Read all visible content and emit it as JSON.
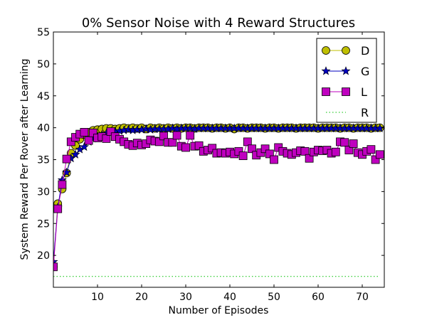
{
  "chart_data": {
    "type": "line",
    "title": "0% Sensor Noise with 4 Reward Structures",
    "xlabel": "Number of Episodes",
    "ylabel": "System Reward Per Rover after Learning",
    "xlim": [
      0,
      75
    ],
    "ylim": [
      15,
      55
    ],
    "xticks": [
      10,
      20,
      30,
      40,
      50,
      60,
      70
    ],
    "yticks": [
      20,
      25,
      30,
      35,
      40,
      45,
      50,
      55
    ],
    "grid": false,
    "legend_position": "top-right",
    "series": [
      {
        "name": "D",
        "marker": "circle",
        "color": "#bfbf00",
        "x": [
          0,
          1,
          2,
          3,
          4,
          5,
          6,
          7,
          8,
          9,
          10,
          11,
          12,
          13,
          14,
          15,
          16,
          17,
          18,
          19,
          20,
          21,
          22,
          23,
          24,
          25,
          26,
          27,
          28,
          29,
          30,
          31,
          32,
          33,
          34,
          35,
          36,
          37,
          38,
          39,
          40,
          41,
          42,
          43,
          44,
          45,
          46,
          47,
          48,
          49,
          50,
          51,
          52,
          53,
          54,
          55,
          56,
          57,
          58,
          59,
          60,
          61,
          62,
          63,
          64,
          65,
          66,
          67,
          68,
          69,
          70,
          71,
          72,
          73,
          74
        ],
        "values": [
          18.2,
          28.1,
          30.4,
          32.9,
          36.0,
          37.2,
          38.2,
          38.9,
          39.3,
          39.6,
          39.7,
          39.8,
          39.9,
          39.9,
          39.8,
          39.9,
          40.0,
          39.9,
          40.0,
          39.9,
          40.0,
          39.8,
          40.0,
          39.9,
          40.0,
          39.9,
          40.0,
          39.9,
          40.0,
          39.9,
          40.0,
          40.0,
          39.9,
          40.0,
          40.0,
          40.0,
          39.9,
          40.0,
          40.0,
          39.9,
          40.0,
          39.8,
          40.0,
          40.0,
          39.9,
          40.0,
          40.0,
          40.0,
          39.9,
          40.0,
          40.0,
          39.9,
          40.0,
          40.0,
          40.0,
          39.9,
          40.0,
          40.0,
          40.0,
          40.0,
          39.9,
          40.0,
          40.0,
          40.0,
          40.0,
          39.9,
          40.0,
          40.0,
          39.9,
          40.0,
          40.0,
          40.0,
          39.9,
          40.0,
          40.0
        ]
      },
      {
        "name": "G",
        "marker": "star",
        "color": "#0000bf",
        "x": [
          0,
          1,
          2,
          3,
          4,
          5,
          6,
          7,
          8,
          9,
          10,
          11,
          12,
          13,
          14,
          15,
          16,
          17,
          18,
          19,
          20,
          21,
          22,
          23,
          24,
          25,
          26,
          27,
          28,
          29,
          30,
          31,
          32,
          33,
          34,
          35,
          36,
          37,
          38,
          39,
          40,
          41,
          42,
          43,
          44,
          45,
          46,
          47,
          48,
          49,
          50,
          51,
          52,
          53,
          54,
          55,
          56,
          57,
          58,
          59,
          60,
          61,
          62,
          63,
          64,
          65,
          66,
          67,
          68,
          69,
          70,
          71,
          72,
          73,
          74
        ],
        "values": [
          19.0,
          27.5,
          31.8,
          33.0,
          35.2,
          35.8,
          36.6,
          37.0,
          37.8,
          38.3,
          38.6,
          38.9,
          39.1,
          39.3,
          39.4,
          39.5,
          39.6,
          39.7,
          39.6,
          39.7,
          39.7,
          39.8,
          39.7,
          39.8,
          39.8,
          39.8,
          39.8,
          39.9,
          39.8,
          39.9,
          39.9,
          39.9,
          39.8,
          39.9,
          39.9,
          39.9,
          39.9,
          39.9,
          39.9,
          39.9,
          39.9,
          39.9,
          39.9,
          39.9,
          39.9,
          39.9,
          39.9,
          39.9,
          39.9,
          39.9,
          39.9,
          39.9,
          39.9,
          39.9,
          39.9,
          39.9,
          39.9,
          39.9,
          39.9,
          39.9,
          39.9,
          39.9,
          39.9,
          39.9,
          39.9,
          39.9,
          39.9,
          39.9,
          39.9,
          39.9,
          39.9,
          39.9,
          39.9,
          39.9,
          39.9
        ]
      },
      {
        "name": "L",
        "marker": "square",
        "color": "#bf00bf",
        "x": [
          0,
          1,
          2,
          3,
          4,
          5,
          6,
          7,
          8,
          9,
          10,
          11,
          12,
          13,
          14,
          15,
          16,
          17,
          18,
          19,
          20,
          21,
          22,
          23,
          24,
          25,
          26,
          27,
          28,
          29,
          30,
          31,
          32,
          33,
          34,
          35,
          36,
          37,
          38,
          39,
          40,
          41,
          42,
          43,
          44,
          45,
          46,
          47,
          48,
          49,
          50,
          51,
          52,
          53,
          54,
          55,
          56,
          57,
          58,
          59,
          60,
          61,
          62,
          63,
          64,
          65,
          66,
          67,
          68,
          69,
          70,
          71,
          72,
          73,
          74
        ],
        "values": [
          18.2,
          27.3,
          31.1,
          35.1,
          37.8,
          38.5,
          39.0,
          39.3,
          38.0,
          39.2,
          38.4,
          38.6,
          38.3,
          39.4,
          38.6,
          38.2,
          37.8,
          37.4,
          37.2,
          37.6,
          37.3,
          37.5,
          38.1,
          37.9,
          37.8,
          38.7,
          37.7,
          37.7,
          38.8,
          37.1,
          36.9,
          38.8,
          37.1,
          37.2,
          36.3,
          36.5,
          36.8,
          36.0,
          36.1,
          36.0,
          36.2,
          35.9,
          36.3,
          35.6,
          37.8,
          36.7,
          35.7,
          36.1,
          36.7,
          35.9,
          35.0,
          36.9,
          36.3,
          36.0,
          35.8,
          36.1,
          36.4,
          36.3,
          35.2,
          36.2,
          36.5,
          36.4,
          36.5,
          36.0,
          36.2,
          37.8,
          37.7,
          36.5,
          37.5,
          36.1,
          35.8,
          36.3,
          36.6,
          35.0,
          35.8
        ]
      },
      {
        "name": "R",
        "marker": "none",
        "linestyle": "dotted",
        "color": "#00bf00",
        "x": [
          0,
          74
        ],
        "values": [
          16.7,
          16.7
        ]
      }
    ]
  }
}
